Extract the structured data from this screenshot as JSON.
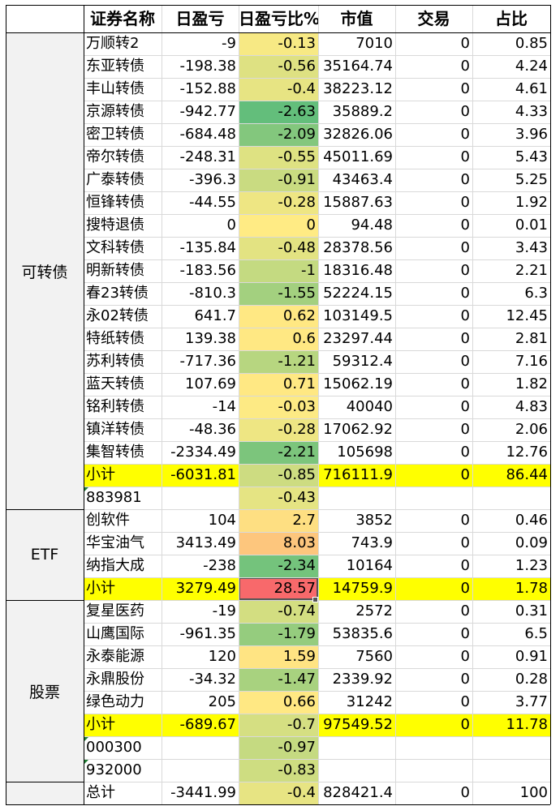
{
  "headers": [
    "证券名称",
    "日盈亏",
    "日盈亏比%",
    "市值",
    "交易",
    "占比"
  ],
  "groups": [
    {
      "name": "可转债",
      "rows": [
        {
          "name": "万顺转2",
          "pnl": "-9",
          "pct": "-0.13",
          "mv": "7010",
          "trade": "0",
          "share": "0.85"
        },
        {
          "name": "东亚转债",
          "pnl": "-198.38",
          "pct": "-0.56",
          "mv": "35164.74",
          "trade": "0",
          "share": "4.24"
        },
        {
          "name": "丰山转债",
          "pnl": "-152.88",
          "pct": "-0.4",
          "mv": "38223.12",
          "trade": "0",
          "share": "4.61"
        },
        {
          "name": "京源转债",
          "pnl": "-942.77",
          "pct": "-2.63",
          "mv": "35889.2",
          "trade": "0",
          "share": "4.33"
        },
        {
          "name": "密卫转债",
          "pnl": "-684.48",
          "pct": "-2.09",
          "mv": "32826.06",
          "trade": "0",
          "share": "3.96"
        },
        {
          "name": "帝尔转债",
          "pnl": "-248.31",
          "pct": "-0.55",
          "mv": "45011.69",
          "trade": "0",
          "share": "5.43"
        },
        {
          "name": "广泰转债",
          "pnl": "-396.3",
          "pct": "-0.91",
          "mv": "43463.4",
          "trade": "0",
          "share": "5.25"
        },
        {
          "name": "恒锋转债",
          "pnl": "-44.55",
          "pct": "-0.28",
          "mv": "15887.63",
          "trade": "0",
          "share": "1.92"
        },
        {
          "name": "搜特退债",
          "pnl": "0",
          "pct": "0",
          "mv": "94.48",
          "trade": "0",
          "share": "0.01"
        },
        {
          "name": "文科转债",
          "pnl": "-135.84",
          "pct": "-0.48",
          "mv": "28378.56",
          "trade": "0",
          "share": "3.43"
        },
        {
          "name": "明新转债",
          "pnl": "-183.56",
          "pct": "-1",
          "mv": "18316.48",
          "trade": "0",
          "share": "2.21"
        },
        {
          "name": "春23转债",
          "pnl": "-810.3",
          "pct": "-1.55",
          "mv": "52224.15",
          "trade": "0",
          "share": "6.3"
        },
        {
          "name": "永02转债",
          "pnl": "641.7",
          "pct": "0.62",
          "mv": "103149.5",
          "trade": "0",
          "share": "12.45"
        },
        {
          "name": "特纸转债",
          "pnl": "139.38",
          "pct": "0.6",
          "mv": "23297.44",
          "trade": "0",
          "share": "2.81"
        },
        {
          "name": "苏利转债",
          "pnl": "-717.36",
          "pct": "-1.21",
          "mv": "59312.4",
          "trade": "0",
          "share": "7.16"
        },
        {
          "name": "蓝天转债",
          "pnl": "107.69",
          "pct": "0.71",
          "mv": "15062.19",
          "trade": "0",
          "share": "1.82"
        },
        {
          "name": "铭利转债",
          "pnl": "-14",
          "pct": "-0.03",
          "mv": "40040",
          "trade": "0",
          "share": "4.83"
        },
        {
          "name": "镇洋转债",
          "pnl": "-48.36",
          "pct": "-0.28",
          "mv": "17062.92",
          "trade": "0",
          "share": "2.06"
        },
        {
          "name": "集智转债",
          "pnl": "-2334.49",
          "pct": "-2.21",
          "mv": "105698",
          "trade": "0",
          "share": "12.76"
        }
      ],
      "subtotal": {
        "name": "小计",
        "pnl": "-6031.81",
        "pct": "-0.85",
        "mv": "716111.9",
        "trade": "0",
        "share": "86.44"
      },
      "benchmarks": [
        {
          "name": "883981",
          "pct": "-0.43"
        }
      ]
    },
    {
      "name": "ETF",
      "rows": [
        {
          "name": "创软件",
          "pnl": "104",
          "pct": "2.7",
          "mv": "3852",
          "trade": "0",
          "share": "0.46"
        },
        {
          "name": "华宝油气",
          "pnl": "3413.49",
          "pct": "8.03",
          "mv": "743.9",
          "trade": "0",
          "share": "0.09"
        },
        {
          "name": "纳指大成",
          "pnl": "-238",
          "pct": "-2.34",
          "mv": "10164",
          "trade": "0",
          "share": "1.23"
        }
      ],
      "subtotal": {
        "name": "小计",
        "pnl": "3279.49",
        "pct": "28.57",
        "mv": "14759.9",
        "trade": "0",
        "share": "1.78"
      },
      "benchmarks": []
    },
    {
      "name": "股票",
      "rows": [
        {
          "name": "复星医药",
          "pnl": "-19",
          "pct": "-0.74",
          "mv": "2572",
          "trade": "0",
          "share": "0.31"
        },
        {
          "name": "山鹰国际",
          "pnl": "-961.35",
          "pct": "-1.79",
          "mv": "53835.6",
          "trade": "0",
          "share": "6.5"
        },
        {
          "name": "永泰能源",
          "pnl": "120",
          "pct": "1.59",
          "mv": "7560",
          "trade": "0",
          "share": "0.91"
        },
        {
          "name": "永鼎股份",
          "pnl": "-34.32",
          "pct": "-1.47",
          "mv": "2339.92",
          "trade": "0",
          "share": "0.28"
        },
        {
          "name": "绿色动力",
          "pnl": "205",
          "pct": "0.66",
          "mv": "31242",
          "trade": "0",
          "share": "3.77"
        }
      ],
      "subtotal": {
        "name": "小计",
        "pnl": "-689.67",
        "pct": "-0.7",
        "mv": "97549.52",
        "trade": "0",
        "share": "11.78"
      },
      "benchmarks": [
        {
          "name": "000300",
          "pct": "-0.97"
        },
        {
          "name": "932000",
          "pct": "-0.83"
        }
      ]
    }
  ],
  "total": {
    "name": "总计",
    "pnl": "-3441.99",
    "pct": "-0.4",
    "mv": "828421.4",
    "trade": "0",
    "share": "100"
  },
  "colors": {
    "subtotal_highlight": "#ffff00",
    "group_bg": "#f2f2f2",
    "grid": "#d9d9d9",
    "border": "#000000",
    "scale_green": "#63be7b",
    "scale_yellow": "#ffeb84",
    "scale_red": "#f8696b"
  },
  "pct_color_scale": {
    "min": -2.63,
    "mid": 0,
    "max": 28.57
  },
  "active_cell": "ETF subtotal 日盈亏比%"
}
